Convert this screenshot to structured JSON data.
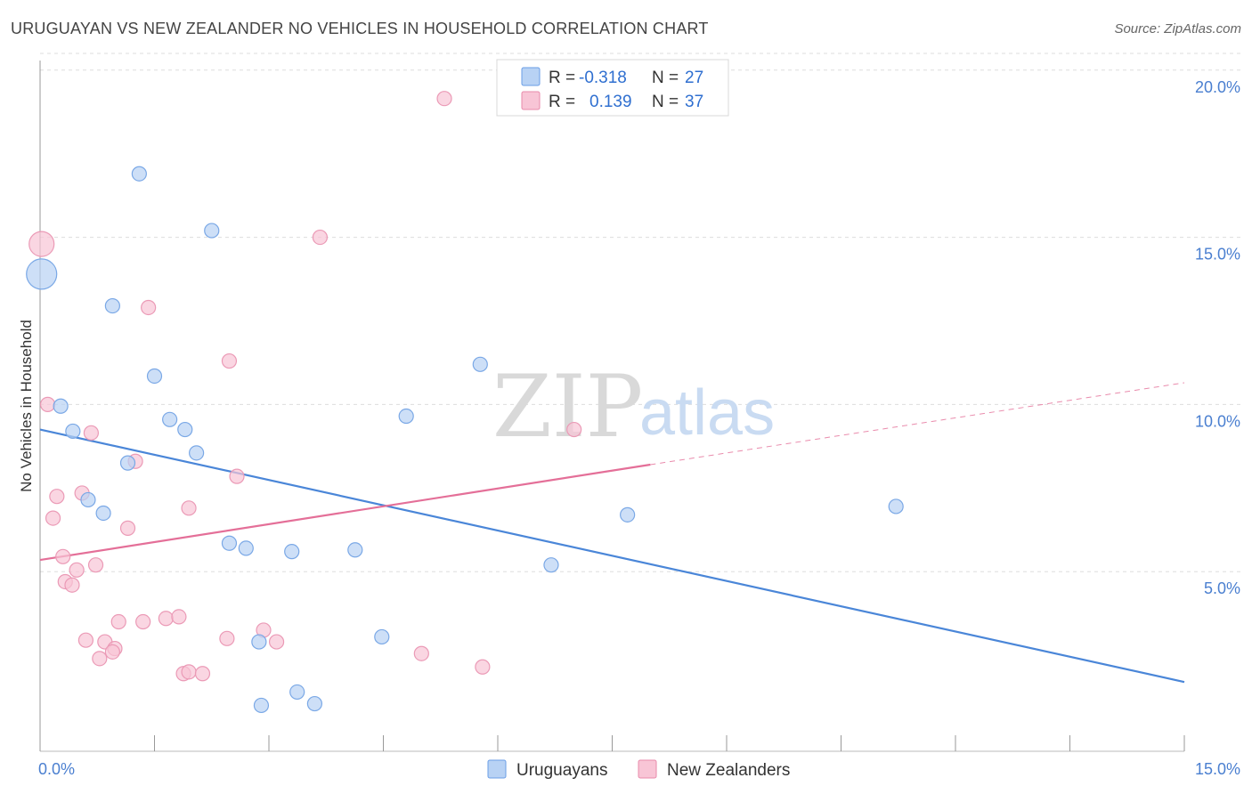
{
  "title": "URUGUAYAN VS NEW ZEALANDER NO VEHICLES IN HOUSEHOLD CORRELATION CHART",
  "source": "Source: ZipAtlas.com",
  "watermark": {
    "zip": "ZIP",
    "atlas": "atlas"
  },
  "colors": {
    "blue": "#4a86d8",
    "blue_fill": "#b8d2f4",
    "pink": "#e46f98",
    "pink_fill": "#f8c5d6",
    "grid": "#dddddd",
    "axis_text": "#4a7fd0"
  },
  "legend": {
    "r_label": "R =",
    "n_label": "N =",
    "rows": [
      {
        "r": "-0.318",
        "n": "27"
      },
      {
        "r": "0.139",
        "n": "37"
      }
    ]
  },
  "chart_data": {
    "type": "scatter",
    "title": "URUGUAYAN VS NEW ZEALANDER NO VEHICLES IN HOUSEHOLD CORRELATION CHART",
    "xlabel": "",
    "ylabel": "No Vehicles in Household",
    "xlim": [
      0,
      15
    ],
    "ylim": [
      0,
      20.5
    ],
    "x_tick_labels": [
      "0.0%",
      "15.0%"
    ],
    "y_ticks": [
      {
        "value": 5,
        "label": "5.0%"
      },
      {
        "value": 10,
        "label": "10.0%"
      },
      {
        "value": 15,
        "label": "15.0%"
      },
      {
        "value": 20,
        "label": "20.0%"
      }
    ],
    "grid": true,
    "legend_position": "top-center",
    "series": [
      {
        "name": "Uruguayans",
        "color": "#4a86d8",
        "points": [
          {
            "x": 0.02,
            "y": 13.9,
            "size": 3
          },
          {
            "x": 1.3,
            "y": 16.9,
            "size": 1
          },
          {
            "x": 2.25,
            "y": 15.2,
            "size": 1
          },
          {
            "x": 0.95,
            "y": 12.95,
            "size": 1
          },
          {
            "x": 1.5,
            "y": 10.85,
            "size": 1
          },
          {
            "x": 5.77,
            "y": 11.2,
            "size": 1
          },
          {
            "x": 0.27,
            "y": 9.95,
            "size": 1
          },
          {
            "x": 0.43,
            "y": 9.2,
            "size": 1
          },
          {
            "x": 1.7,
            "y": 9.55,
            "size": 1
          },
          {
            "x": 1.9,
            "y": 9.25,
            "size": 1
          },
          {
            "x": 4.8,
            "y": 9.65,
            "size": 1
          },
          {
            "x": 2.05,
            "y": 8.55,
            "size": 1
          },
          {
            "x": 1.15,
            "y": 8.25,
            "size": 1
          },
          {
            "x": 0.63,
            "y": 7.15,
            "size": 1
          },
          {
            "x": 0.83,
            "y": 6.75,
            "size": 1
          },
          {
            "x": 11.22,
            "y": 6.95,
            "size": 1
          },
          {
            "x": 7.7,
            "y": 6.7,
            "size": 1
          },
          {
            "x": 2.48,
            "y": 5.85,
            "size": 1
          },
          {
            "x": 2.7,
            "y": 5.7,
            "size": 1
          },
          {
            "x": 3.3,
            "y": 5.6,
            "size": 1
          },
          {
            "x": 4.13,
            "y": 5.65,
            "size": 1
          },
          {
            "x": 6.7,
            "y": 5.2,
            "size": 1
          },
          {
            "x": 4.48,
            "y": 3.05,
            "size": 1
          },
          {
            "x": 2.87,
            "y": 2.9,
            "size": 1
          },
          {
            "x": 3.37,
            "y": 1.4,
            "size": 1
          },
          {
            "x": 2.9,
            "y": 1.0,
            "size": 1
          },
          {
            "x": 3.6,
            "y": 1.05,
            "size": 1
          }
        ],
        "trend": {
          "x0": 0,
          "y0": 9.25,
          "x1": 15,
          "y1": 1.7
        }
      },
      {
        "name": "New Zealanders",
        "color": "#e46f98",
        "points": [
          {
            "x": 0.02,
            "y": 14.8,
            "size": 2
          },
          {
            "x": 5.3,
            "y": 19.15,
            "size": 1
          },
          {
            "x": 3.67,
            "y": 15.0,
            "size": 1
          },
          {
            "x": 1.42,
            "y": 12.9,
            "size": 1
          },
          {
            "x": 2.48,
            "y": 11.3,
            "size": 1
          },
          {
            "x": 0.1,
            "y": 10.0,
            "size": 1
          },
          {
            "x": 0.67,
            "y": 9.15,
            "size": 1
          },
          {
            "x": 7.0,
            "y": 9.25,
            "size": 1
          },
          {
            "x": 1.25,
            "y": 8.3,
            "size": 1
          },
          {
            "x": 2.58,
            "y": 7.85,
            "size": 1
          },
          {
            "x": 0.22,
            "y": 7.25,
            "size": 1
          },
          {
            "x": 0.55,
            "y": 7.35,
            "size": 1
          },
          {
            "x": 1.95,
            "y": 6.9,
            "size": 1
          },
          {
            "x": 0.17,
            "y": 6.6,
            "size": 1
          },
          {
            "x": 1.15,
            "y": 6.3,
            "size": 1
          },
          {
            "x": 0.3,
            "y": 5.45,
            "size": 1
          },
          {
            "x": 0.73,
            "y": 5.2,
            "size": 1
          },
          {
            "x": 0.48,
            "y": 5.05,
            "size": 1
          },
          {
            "x": 0.33,
            "y": 4.7,
            "size": 1
          },
          {
            "x": 0.42,
            "y": 4.6,
            "size": 1
          },
          {
            "x": 1.03,
            "y": 3.5,
            "size": 1
          },
          {
            "x": 1.35,
            "y": 3.5,
            "size": 1
          },
          {
            "x": 1.65,
            "y": 3.6,
            "size": 1
          },
          {
            "x": 1.82,
            "y": 3.65,
            "size": 1
          },
          {
            "x": 2.93,
            "y": 3.25,
            "size": 1
          },
          {
            "x": 0.6,
            "y": 2.95,
            "size": 1
          },
          {
            "x": 0.85,
            "y": 2.9,
            "size": 1
          },
          {
            "x": 2.45,
            "y": 3.0,
            "size": 1
          },
          {
            "x": 3.1,
            "y": 2.9,
            "size": 1
          },
          {
            "x": 0.98,
            "y": 2.7,
            "size": 1
          },
          {
            "x": 0.95,
            "y": 2.6,
            "size": 1
          },
          {
            "x": 0.78,
            "y": 2.4,
            "size": 1
          },
          {
            "x": 5.0,
            "y": 2.55,
            "size": 1
          },
          {
            "x": 5.8,
            "y": 2.15,
            "size": 1
          },
          {
            "x": 1.88,
            "y": 1.95,
            "size": 1
          },
          {
            "x": 1.95,
            "y": 2.0,
            "size": 1
          },
          {
            "x": 2.13,
            "y": 1.95,
            "size": 1
          }
        ],
        "trend": {
          "x0": 0,
          "y0": 5.35,
          "x1": 8.0,
          "y1": 8.2,
          "x_ext": 15,
          "y_ext": 10.65
        }
      }
    ]
  }
}
